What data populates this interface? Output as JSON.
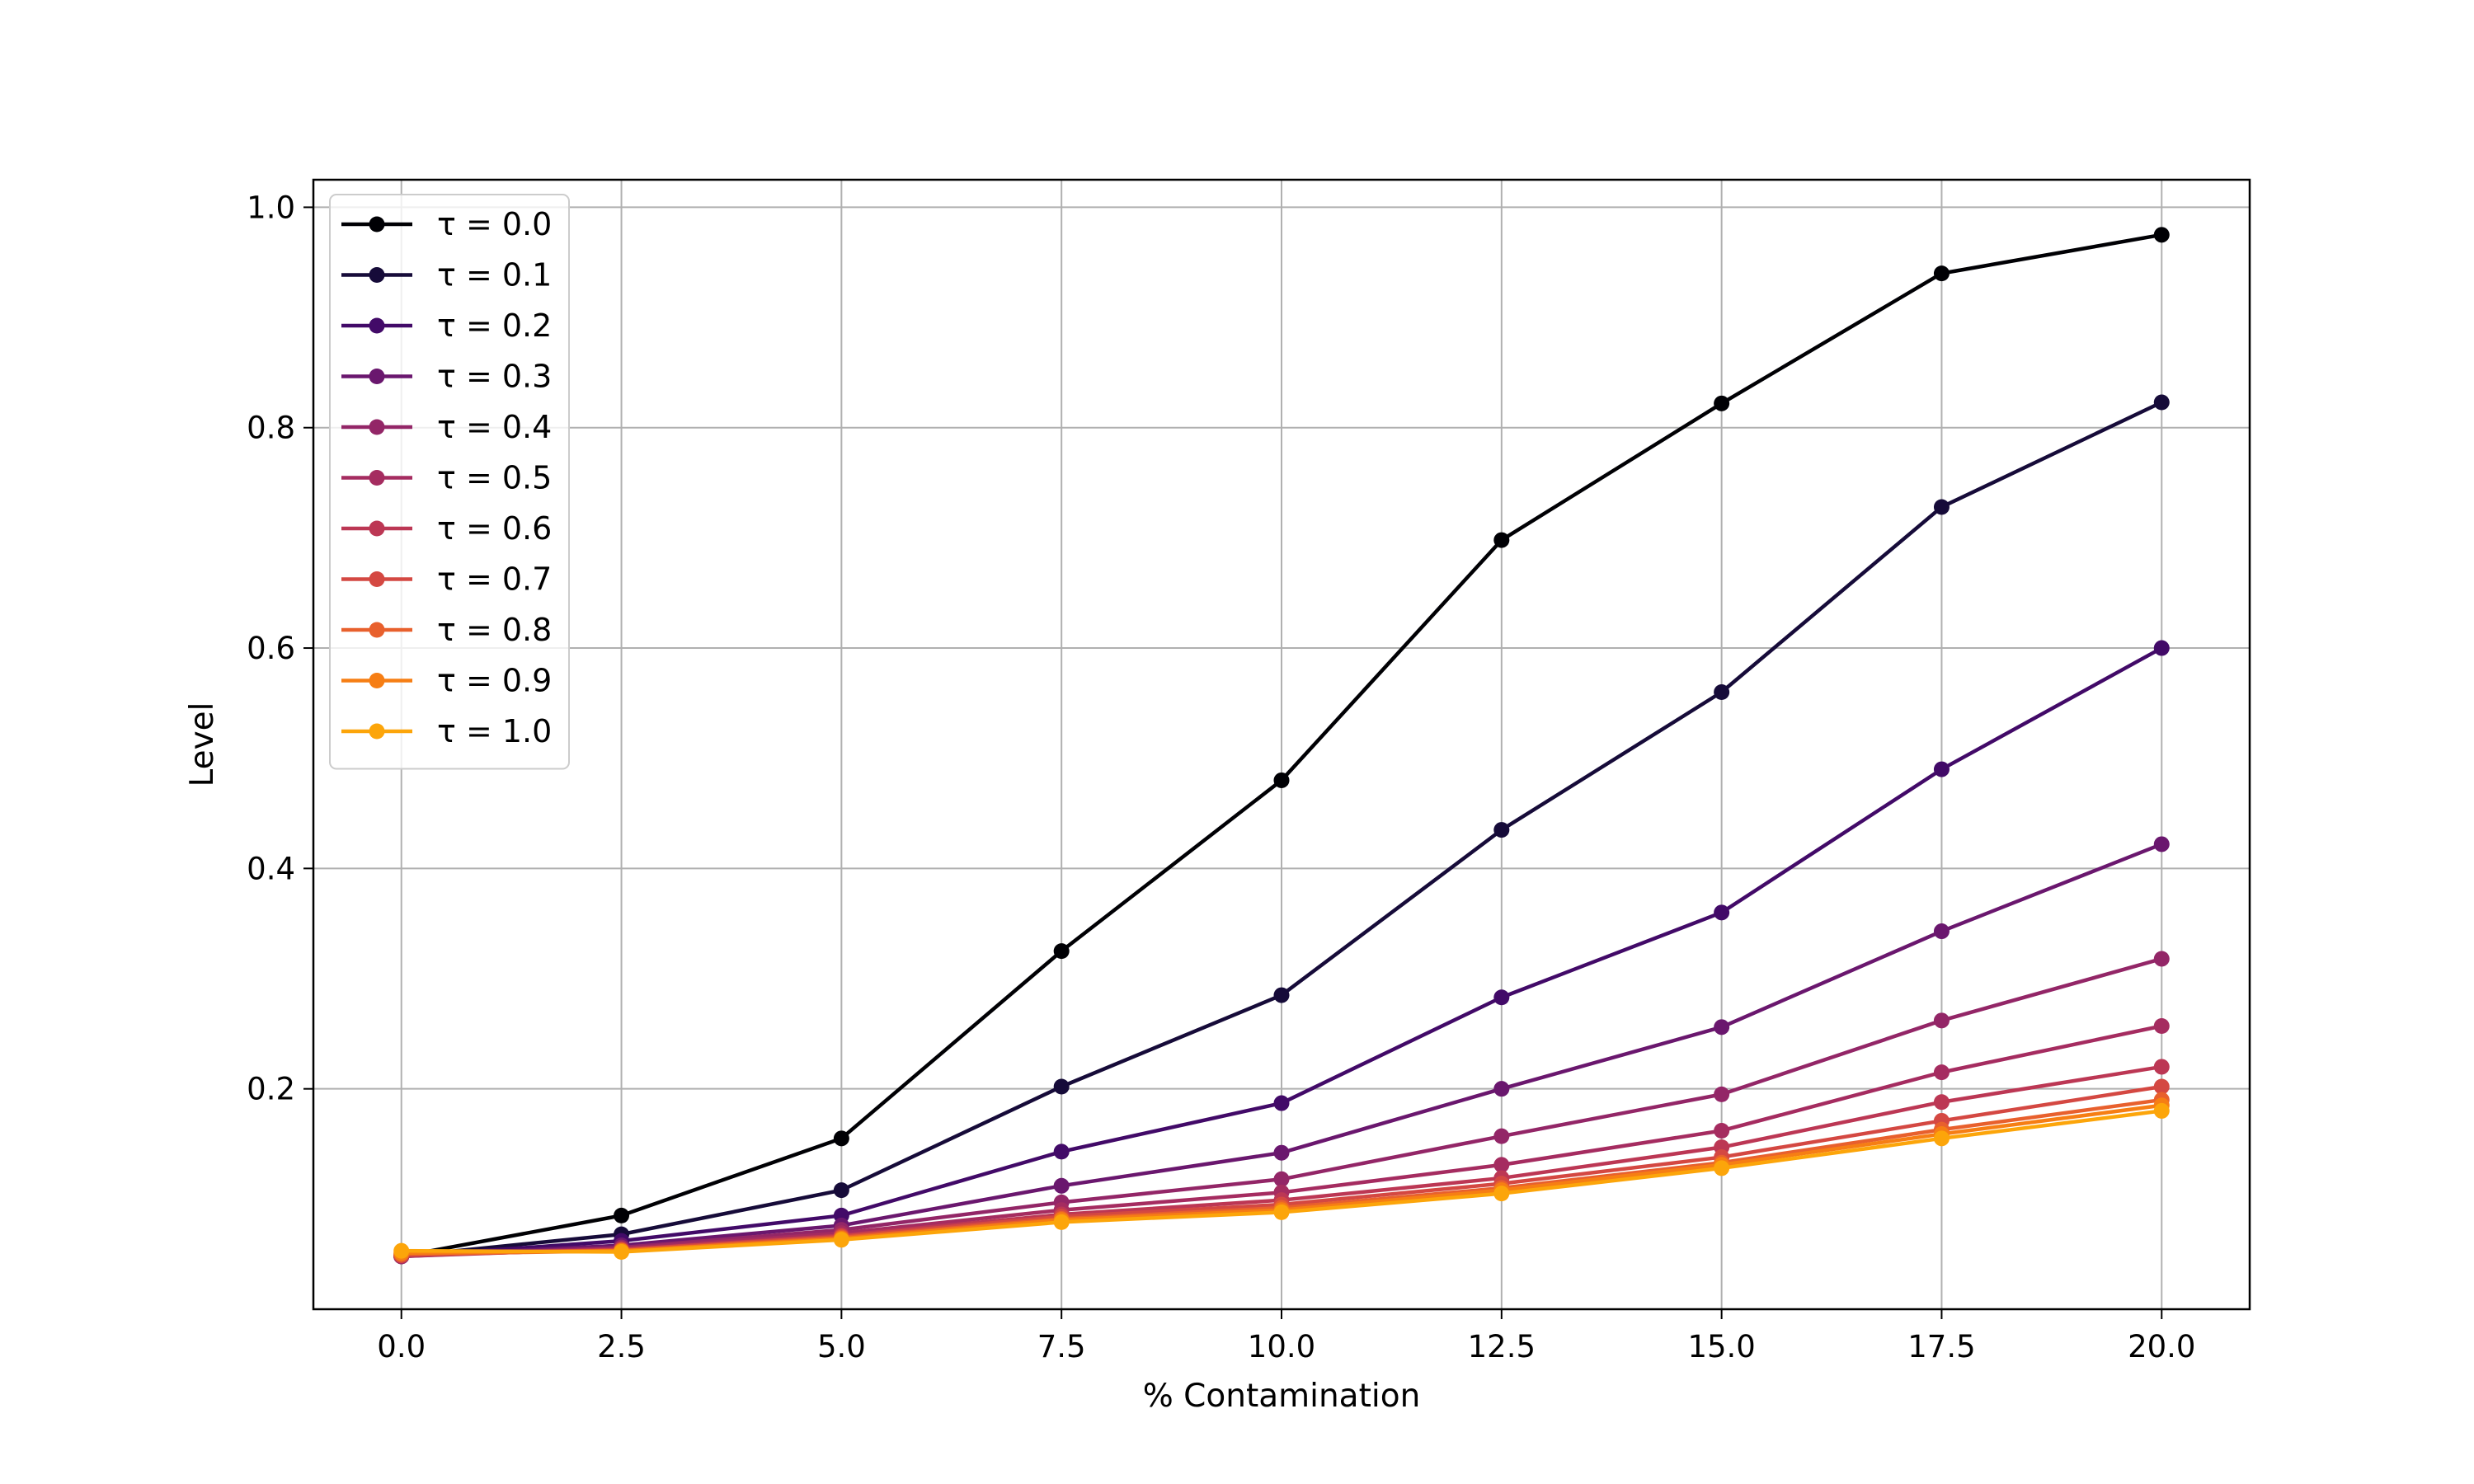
{
  "chart_data": {
    "type": "line",
    "title": "",
    "xlabel": "% Contamination",
    "ylabel": "Level",
    "xlim": [
      -1.0,
      21.0
    ],
    "ylim": [
      0.0,
      1.025
    ],
    "xticks": [
      0.0,
      2.5,
      5.0,
      7.5,
      10.0,
      12.5,
      15.0,
      17.5,
      20.0
    ],
    "xtick_labels": [
      "0.0",
      "2.5",
      "5.0",
      "7.5",
      "10.0",
      "12.5",
      "15.0",
      "17.5",
      "20.0"
    ],
    "yticks": [
      0.2,
      0.4,
      0.6,
      0.8,
      1.0
    ],
    "ytick_labels": [
      "0.2",
      "0.4",
      "0.6",
      "0.8",
      "1.0"
    ],
    "grid": true,
    "legend_position": "top-left",
    "x": [
      0.0,
      2.5,
      5.0,
      7.5,
      10.0,
      12.5,
      15.0,
      17.5,
      20.0
    ],
    "series": [
      {
        "name": "τ = 0.0",
        "color": "#000004",
        "values": [
          0.048,
          0.085,
          0.155,
          0.325,
          0.48,
          0.698,
          0.822,
          0.94,
          0.975
        ]
      },
      {
        "name": "τ = 0.1",
        "color": "#160b39",
        "values": [
          0.048,
          0.068,
          0.108,
          0.202,
          0.285,
          0.435,
          0.56,
          0.728,
          0.823
        ]
      },
      {
        "name": "τ = 0.2",
        "color": "#420a68",
        "values": [
          0.048,
          0.062,
          0.085,
          0.143,
          0.187,
          0.283,
          0.36,
          0.49,
          0.6
        ]
      },
      {
        "name": "τ = 0.3",
        "color": "#6a176e",
        "values": [
          0.048,
          0.058,
          0.076,
          0.112,
          0.142,
          0.2,
          0.256,
          0.343,
          0.422
        ]
      },
      {
        "name": "τ = 0.4",
        "color": "#932667",
        "values": [
          0.048,
          0.056,
          0.072,
          0.097,
          0.118,
          0.157,
          0.195,
          0.262,
          0.318
        ]
      },
      {
        "name": "τ = 0.5",
        "color": "#a52c60",
        "values": [
          0.048,
          0.055,
          0.069,
          0.09,
          0.106,
          0.131,
          0.162,
          0.215,
          0.257
        ]
      },
      {
        "name": "τ = 0.6",
        "color": "#bc3754",
        "values": [
          0.049,
          0.054,
          0.067,
          0.086,
          0.099,
          0.119,
          0.147,
          0.188,
          0.22
        ]
      },
      {
        "name": "τ = 0.7",
        "color": "#d44842",
        "values": [
          0.049,
          0.054,
          0.066,
          0.084,
          0.095,
          0.114,
          0.138,
          0.171,
          0.202
        ]
      },
      {
        "name": "τ = 0.8",
        "color": "#e8602d",
        "values": [
          0.05,
          0.053,
          0.065,
          0.082,
          0.092,
          0.11,
          0.133,
          0.163,
          0.19
        ]
      },
      {
        "name": "τ = 0.9",
        "color": "#f67e14",
        "values": [
          0.051,
          0.053,
          0.064,
          0.081,
          0.09,
          0.108,
          0.131,
          0.159,
          0.185
        ]
      },
      {
        "name": "τ = 1.0",
        "color": "#fca50a",
        "values": [
          0.053,
          0.052,
          0.063,
          0.079,
          0.088,
          0.105,
          0.128,
          0.155,
          0.18
        ]
      }
    ]
  }
}
